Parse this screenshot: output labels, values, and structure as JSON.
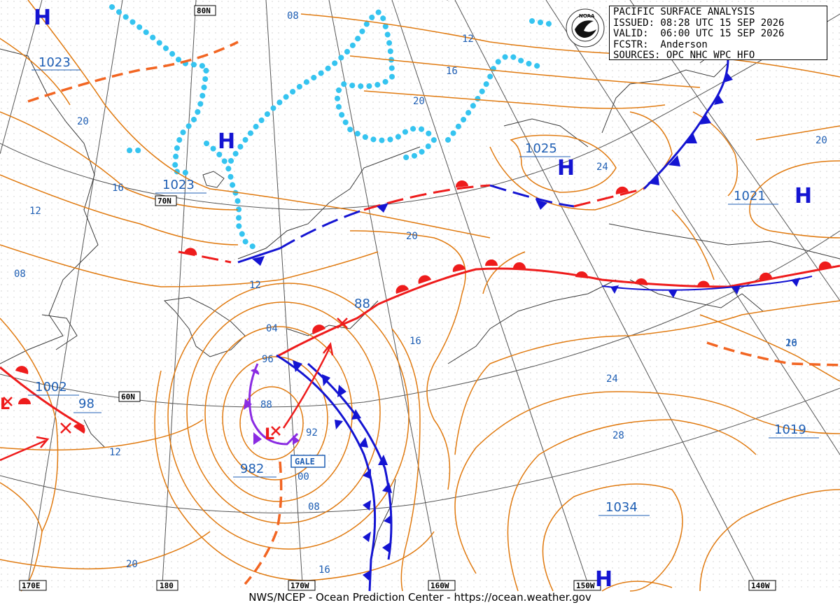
{
  "info_box": {
    "title": "PACIFIC SURFACE ANALYSIS",
    "issued": "ISSUED: 08:28 UTC 15 SEP 2026",
    "valid": "VALID:  06:00 UTC 15 SEP 2026",
    "forecaster": "FCSTR:  Anderson",
    "sources": "SOURCES: OPC NHC WPC HFO"
  },
  "logo_text": "NOAA",
  "footer": "NWS/NCEP - Ocean Prediction Center - https://ocean.weather.gov",
  "gale_label": "GALE",
  "pressure_centers": [
    {
      "type": "H",
      "value": "1023"
    },
    {
      "type": "H",
      "value": "1023"
    },
    {
      "type": "H",
      "value": "1025"
    },
    {
      "type": "H",
      "value": "1021"
    },
    {
      "type": "H",
      "value": "1034"
    },
    {
      "type": "H",
      "value": "1019"
    },
    {
      "type": "L",
      "value": "982"
    },
    {
      "type": "L",
      "value": "1002"
    },
    {
      "type": "H",
      "value": ""
    }
  ],
  "isobar_labels": [
    "08",
    "12",
    "16",
    "20",
    "20",
    "16",
    "12",
    "08",
    "12",
    "20",
    "16",
    "88",
    "04",
    "96",
    "88",
    "92",
    "00",
    "08",
    "16",
    "20",
    "16",
    "24",
    "28",
    "20",
    "20",
    "24",
    "98",
    "12",
    "20"
  ],
  "grid_labels": [
    "80N",
    "70N",
    "60N",
    "170E",
    "180",
    "170W",
    "160W",
    "150W",
    "140W"
  ],
  "colors": {
    "isobar": "#e07a10",
    "cold_front": "#1414d2",
    "warm_front": "#ee1c1c",
    "occluded": "#8a2be2",
    "ice": "#35c4f0",
    "grid": "#555555",
    "coast": "#444444",
    "labels": "#1f5fb4"
  }
}
